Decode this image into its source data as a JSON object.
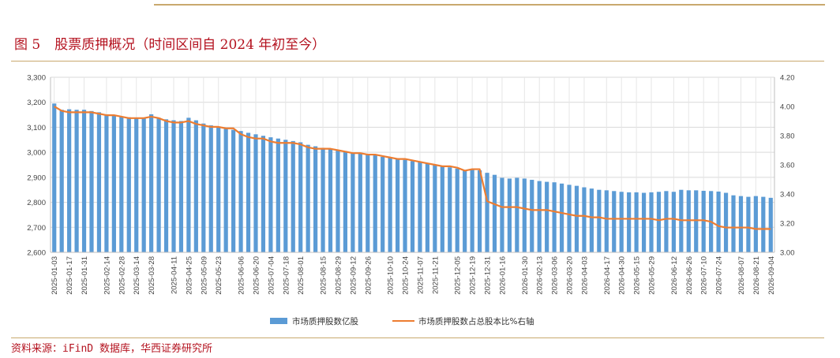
{
  "figure": {
    "label": "图 5",
    "title": "股票质押概况（时间区间自 2024 年初至今）"
  },
  "source": "资料来源：iFinD 数据库，华西证券研究所",
  "chart_data": {
    "type": "bar+line",
    "legend": [
      "市场质押股数亿股",
      "市场质押股数占总股本比%右轴"
    ],
    "legend_placement": "bottom",
    "grid": true,
    "colors": {
      "bar": "#5b9bd5",
      "line": "#ed7d31"
    },
    "y_left": {
      "min": 2600,
      "max": 3300,
      "step": 100,
      "ticks": [
        "2,600",
        "2,700",
        "2,800",
        "2,900",
        "3,000",
        "3,100",
        "3,200",
        "3,300"
      ]
    },
    "y_right": {
      "min": 3.0,
      "max": 4.2,
      "step": 0.2,
      "ticks": [
        "3.00",
        "3.20",
        "3.40",
        "3.60",
        "3.80",
        "4.00",
        "4.20"
      ]
    },
    "x_tick_labels": [
      "2025-01-03",
      "2025-01-17",
      "2025-01-31",
      "2025-02-14",
      "2025-02-28",
      "2025-03-14",
      "2025-03-28",
      "2025-04-11",
      "2025-04-25",
      "2025-05-09",
      "2025-05-23",
      "2025-06-06",
      "2025-06-20",
      "2025-07-04",
      "2025-07-18",
      "2025-08-01",
      "2025-08-15",
      "2025-08-29",
      "2025-09-12",
      "2025-09-26",
      "2025-10-10",
      "2025-10-24",
      "2025-11-07",
      "2025-11-21",
      "2025-12-05",
      "2025-12-19",
      "2025-12-31",
      "2026-01-16",
      "2026-01-30",
      "2026-02-13",
      "2026-03-06",
      "2026-03-20",
      "2026-04-03",
      "2026-04-17",
      "2026-04-30",
      "2026-05-15",
      "2026-05-29",
      "2026-06-12",
      "2026-06-26",
      "2026-07-10",
      "2026-07-24",
      "2026-08-07",
      "2026-08-21",
      "2026-09-04"
    ],
    "series": [
      {
        "name": "市场质押股数亿股",
        "type": "bar",
        "axis": "left",
        "values": [
          3195,
          3170,
          3172,
          3170,
          3170,
          3165,
          3160,
          3152,
          3148,
          3143,
          3140,
          3138,
          3137,
          3152,
          3138,
          3132,
          3128,
          3125,
          3138,
          3128,
          3115,
          3108,
          3100,
          3095,
          3090,
          3085,
          3078,
          3072,
          3066,
          3060,
          3055,
          3050,
          3045,
          3040,
          3030,
          3024,
          3018,
          3015,
          3010,
          3005,
          2998,
          2995,
          2990,
          2988,
          2982,
          2978,
          2975,
          2970,
          2965,
          2962,
          2955,
          2950,
          2945,
          2940,
          2935,
          2928,
          2930,
          2928,
          2918,
          2910,
          2898,
          2895,
          2898,
          2895,
          2890,
          2885,
          2882,
          2880,
          2875,
          2870,
          2866,
          2860,
          2855,
          2850,
          2848,
          2845,
          2842,
          2840,
          2840,
          2838,
          2840,
          2842,
          2845,
          2842,
          2850,
          2848,
          2848,
          2846,
          2845,
          2843,
          2838,
          2828,
          2825,
          2822,
          2825,
          2822,
          2818
        ]
      },
      {
        "name": "市场质押股数占总股本比%右轴",
        "type": "line",
        "axis": "right",
        "values": [
          4.0,
          3.97,
          3.96,
          3.96,
          3.96,
          3.96,
          3.95,
          3.94,
          3.94,
          3.93,
          3.92,
          3.92,
          3.92,
          3.93,
          3.92,
          3.9,
          3.89,
          3.89,
          3.9,
          3.88,
          3.87,
          3.86,
          3.86,
          3.85,
          3.85,
          3.81,
          3.79,
          3.78,
          3.78,
          3.76,
          3.75,
          3.75,
          3.75,
          3.74,
          3.72,
          3.71,
          3.71,
          3.71,
          3.7,
          3.69,
          3.68,
          3.68,
          3.67,
          3.67,
          3.66,
          3.65,
          3.64,
          3.64,
          3.63,
          3.62,
          3.61,
          3.6,
          3.59,
          3.59,
          3.58,
          3.56,
          3.57,
          3.57,
          3.35,
          3.33,
          3.31,
          3.31,
          3.31,
          3.3,
          3.29,
          3.29,
          3.29,
          3.28,
          3.27,
          3.26,
          3.25,
          3.25,
          3.24,
          3.24,
          3.23,
          3.23,
          3.23,
          3.23,
          3.23,
          3.23,
          3.23,
          3.22,
          3.23,
          3.23,
          3.22,
          3.22,
          3.22,
          3.22,
          3.21,
          3.18,
          3.17,
          3.17,
          3.17,
          3.17,
          3.16,
          3.16,
          3.16
        ]
      }
    ]
  }
}
